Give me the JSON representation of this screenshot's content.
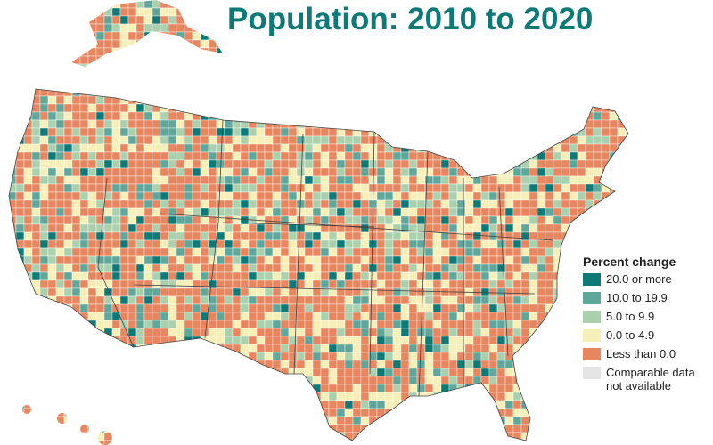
{
  "title": "Population: 2010 to 2020",
  "legend": {
    "title": "Percent change",
    "items": [
      {
        "label": "20.0 or more",
        "color": "#0e7a78"
      },
      {
        "label": "10.0 to 19.9",
        "color": "#5ea79a"
      },
      {
        "label": "5.0 to 9.9",
        "color": "#abd0ae"
      },
      {
        "label": "0.0 to 4.9",
        "color": "#f6f0b8"
      },
      {
        "label": "Less than 0.0",
        "color": "#e8875f"
      },
      {
        "label": "Comparable data not available",
        "color": "#e4e4e4"
      }
    ]
  }
}
